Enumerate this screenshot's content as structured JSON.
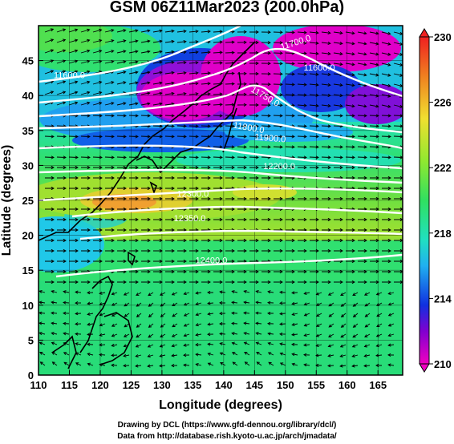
{
  "title": "GSM 06Z11Mar2023 (200.0hPa)",
  "xlabel": "Longitude (degrees)",
  "ylabel": "Latitude  (degrees)",
  "x_ticks": [
    "110",
    "115",
    "120",
    "125",
    "130",
    "135",
    "140",
    "145",
    "150",
    "155",
    "160",
    "165"
  ],
  "y_ticks": [
    "0",
    "5",
    "10",
    "15",
    "20",
    "25",
    "30",
    "35",
    "40",
    "45"
  ],
  "colorbar_ticks": [
    "230",
    "226",
    "222",
    "218",
    "214",
    "210"
  ],
  "contour_labels": [
    {
      "text": "11600.0",
      "lon": 155.5,
      "lat": 43.6,
      "angle": 0
    },
    {
      "text": "11700.0",
      "lon": 151.8,
      "lat": 47.2,
      "angle": -18
    },
    {
      "text": "11750.0",
      "lon": 146.5,
      "lat": 39.5,
      "angle": 30
    },
    {
      "text": "11800.0",
      "lon": 144.0,
      "lat": 35.0,
      "angle": 10
    },
    {
      "text": "11900.0",
      "lon": 147.5,
      "lat": 33.5,
      "angle": 5
    },
    {
      "text": "12200.0",
      "lon": 149.0,
      "lat": 29.5,
      "angle": 0
    },
    {
      "text": "12300.0",
      "lon": 135.0,
      "lat": 25.5,
      "angle": 0
    },
    {
      "text": "12350.0",
      "lon": 134.5,
      "lat": 22.0,
      "angle": 0
    },
    {
      "text": "12400.0",
      "lon": 138.0,
      "lat": 16.0,
      "angle": 0
    },
    {
      "text": "11600.0",
      "lon": 115.0,
      "lat": 42.5,
      "angle": 0
    }
  ],
  "colors": {
    "magenta": "#e000c8",
    "blue": "#1030e0",
    "cyan": "#18d8e8",
    "green": "#30e070",
    "yellow_green": "#a8e830",
    "orange": "#f0a030",
    "red": "#e02020"
  },
  "credit_line1": "Drawing by DCL (https://www.gfd-dennou.org/library/dcl/)",
  "credit_line2": "Data from http://database.rish.kyoto-u.ac.jp/arch/jmadata/"
}
